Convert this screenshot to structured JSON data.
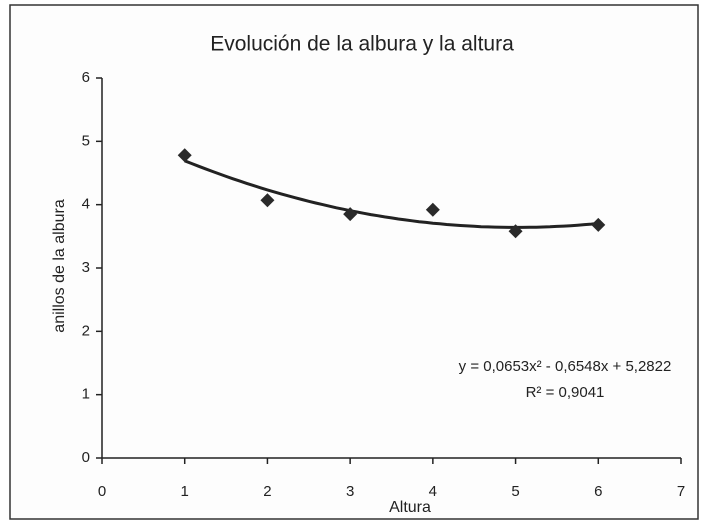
{
  "chart_data": {
    "type": "scatter",
    "title": "Evolución de la albura y la altura",
    "xlabel": "Altura",
    "ylabel": "anillos de la albura",
    "x": [
      1,
      2,
      3,
      4,
      5,
      6
    ],
    "values": [
      4.78,
      4.07,
      3.85,
      3.92,
      3.58,
      3.68
    ],
    "color": "#2a2a2a",
    "marker": "diamond",
    "xlim": [
      0,
      7
    ],
    "xticks": [
      0,
      1,
      2,
      3,
      4,
      5,
      6,
      7
    ],
    "ylim": [
      0,
      6
    ],
    "yticks": [
      0,
      1,
      2,
      3,
      4,
      5,
      6
    ],
    "grid": false,
    "trendline": {
      "type": "polynomial",
      "coefficients": [
        5.2822,
        -0.6548,
        0.0653
      ],
      "equation": "y = 0,0653x² - 0,6548x + 5,2822",
      "r_squared": "R² = 0,9041"
    }
  }
}
